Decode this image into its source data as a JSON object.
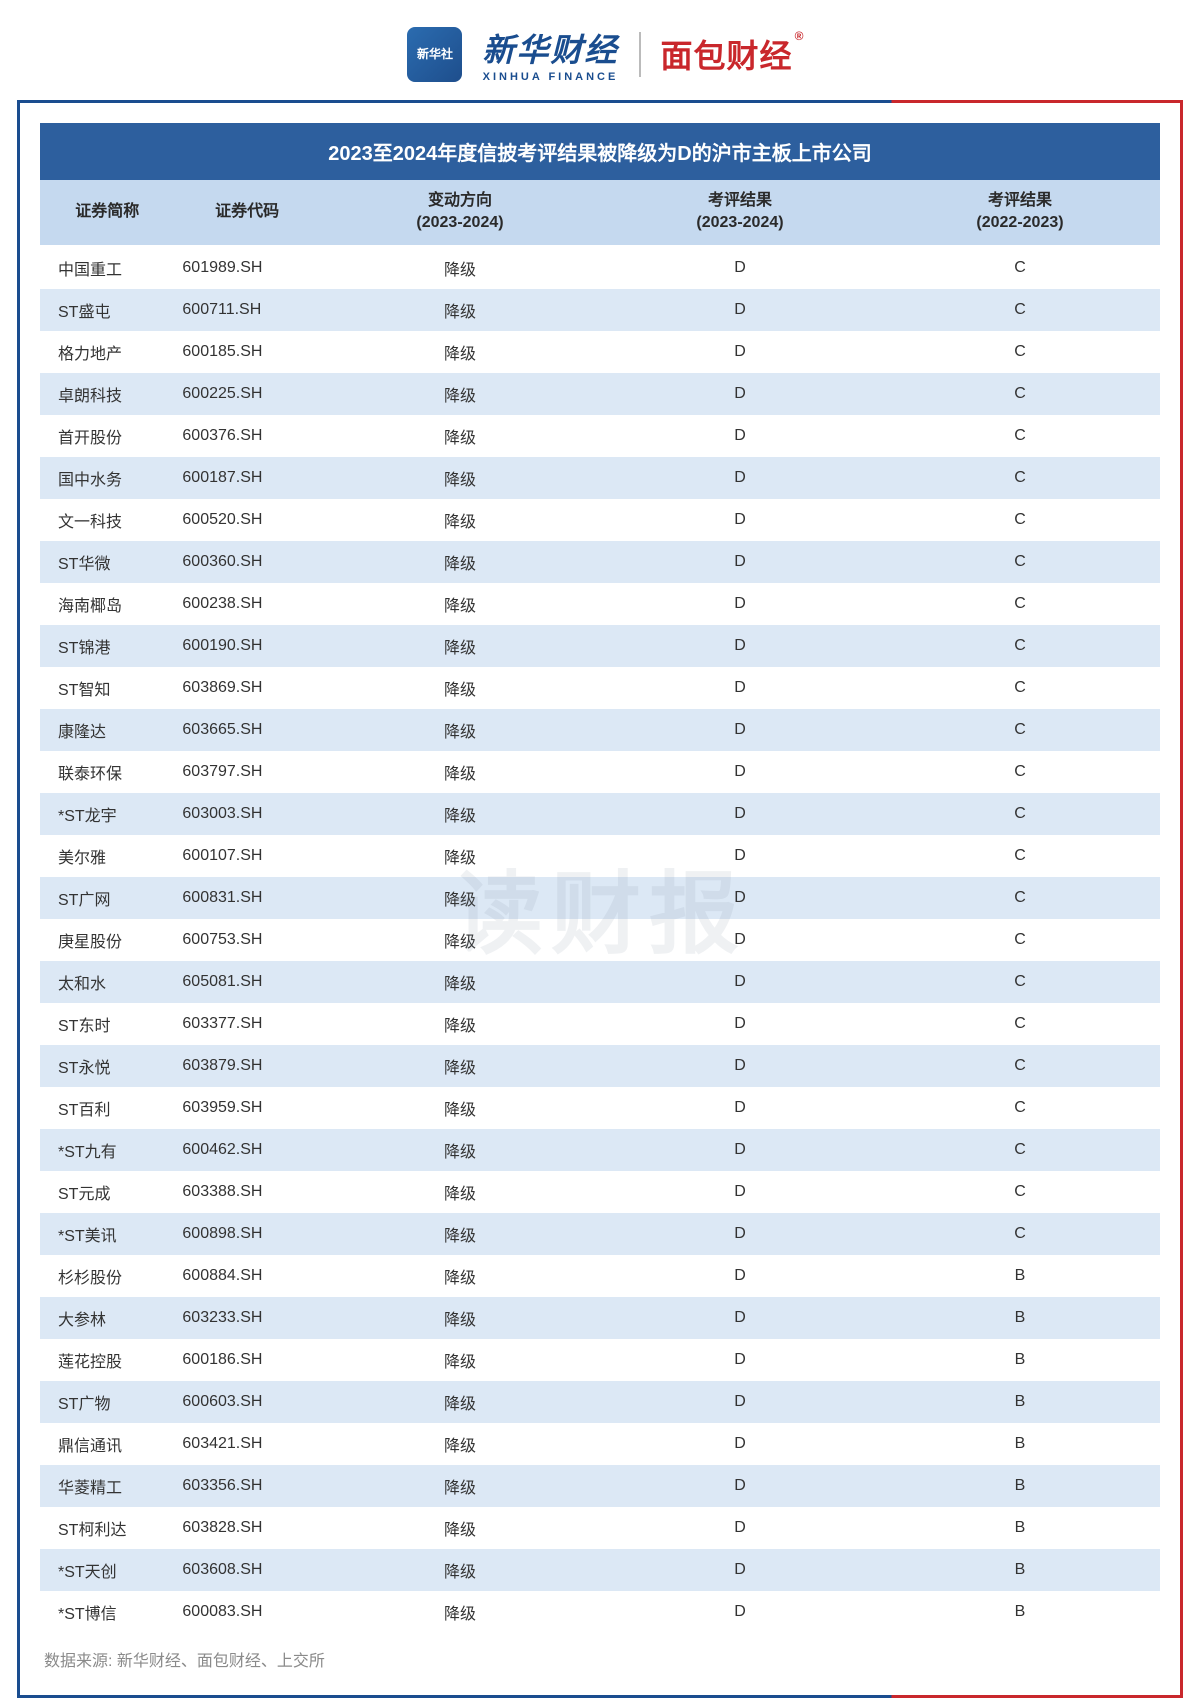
{
  "header": {
    "logo_badge": "新华社",
    "xinhua_cn": "新华财经",
    "xinhua_en": "XINHUA FINANCE",
    "mianbao": "面包财经"
  },
  "title": "2023至2024年度信披考评结果被降级为D的沪市主板上市公司",
  "columns": [
    "证券简称",
    "证券代码",
    "变动方向\n(2023-2024)",
    "考评结果\n(2023-2024)",
    "考评结果\n(2022-2023)"
  ],
  "rows": [
    [
      "中国重工",
      "601989.SH",
      "降级",
      "D",
      "C"
    ],
    [
      "ST盛屯",
      "600711.SH",
      "降级",
      "D",
      "C"
    ],
    [
      "格力地产",
      "600185.SH",
      "降级",
      "D",
      "C"
    ],
    [
      "卓朗科技",
      "600225.SH",
      "降级",
      "D",
      "C"
    ],
    [
      "首开股份",
      "600376.SH",
      "降级",
      "D",
      "C"
    ],
    [
      "国中水务",
      "600187.SH",
      "降级",
      "D",
      "C"
    ],
    [
      "文一科技",
      "600520.SH",
      "降级",
      "D",
      "C"
    ],
    [
      "ST华微",
      "600360.SH",
      "降级",
      "D",
      "C"
    ],
    [
      "海南椰岛",
      "600238.SH",
      "降级",
      "D",
      "C"
    ],
    [
      "ST锦港",
      "600190.SH",
      "降级",
      "D",
      "C"
    ],
    [
      "ST智知",
      "603869.SH",
      "降级",
      "D",
      "C"
    ],
    [
      "康隆达",
      "603665.SH",
      "降级",
      "D",
      "C"
    ],
    [
      "联泰环保",
      "603797.SH",
      "降级",
      "D",
      "C"
    ],
    [
      "*ST龙宇",
      "603003.SH",
      "降级",
      "D",
      "C"
    ],
    [
      "美尔雅",
      "600107.SH",
      "降级",
      "D",
      "C"
    ],
    [
      "ST广网",
      "600831.SH",
      "降级",
      "D",
      "C"
    ],
    [
      "庚星股份",
      "600753.SH",
      "降级",
      "D",
      "C"
    ],
    [
      "太和水",
      "605081.SH",
      "降级",
      "D",
      "C"
    ],
    [
      "ST东时",
      "603377.SH",
      "降级",
      "D",
      "C"
    ],
    [
      "ST永悦",
      "603879.SH",
      "降级",
      "D",
      "C"
    ],
    [
      "ST百利",
      "603959.SH",
      "降级",
      "D",
      "C"
    ],
    [
      "*ST九有",
      "600462.SH",
      "降级",
      "D",
      "C"
    ],
    [
      "ST元成",
      "603388.SH",
      "降级",
      "D",
      "C"
    ],
    [
      "*ST美讯",
      "600898.SH",
      "降级",
      "D",
      "C"
    ],
    [
      "杉杉股份",
      "600884.SH",
      "降级",
      "D",
      "B"
    ],
    [
      "大参林",
      "603233.SH",
      "降级",
      "D",
      "B"
    ],
    [
      "莲花控股",
      "600186.SH",
      "降级",
      "D",
      "B"
    ],
    [
      "ST广物",
      "600603.SH",
      "降级",
      "D",
      "B"
    ],
    [
      "鼎信通讯",
      "603421.SH",
      "降级",
      "D",
      "B"
    ],
    [
      "华菱精工",
      "603356.SH",
      "降级",
      "D",
      "B"
    ],
    [
      "ST柯利达",
      "603828.SH",
      "降级",
      "D",
      "B"
    ],
    [
      "*ST天创",
      "603608.SH",
      "降级",
      "D",
      "B"
    ],
    [
      "*ST博信",
      "600083.SH",
      "降级",
      "D",
      "B"
    ]
  ],
  "watermark": "读财报",
  "source": "数据来源: 新华财经、面包财经、上交所",
  "colors": {
    "title_bg": "#2d5f9e",
    "header_bg": "#c5d9ef",
    "row_even_bg": "#dce8f5",
    "row_odd_bg": "#ffffff",
    "frame_blue": "#1a4d8f",
    "frame_red": "#c9272c"
  }
}
